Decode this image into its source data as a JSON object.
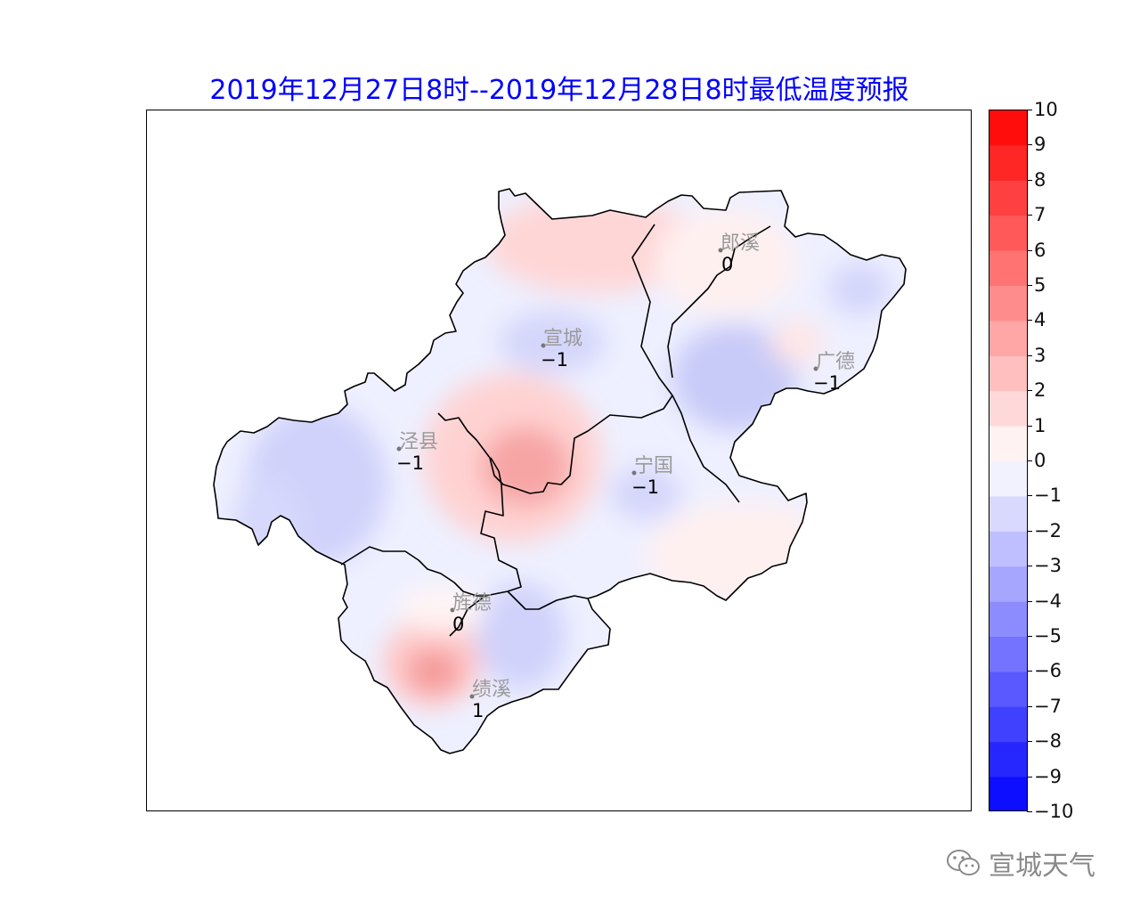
{
  "title": "2019年12月27日8时--2019年12月28日8时最低温度预报",
  "colorbar": {
    "ticks": [
      "10",
      "9",
      "8",
      "7",
      "6",
      "5",
      "4",
      "3",
      "2",
      "1",
      "0",
      "−1",
      "−2",
      "−3",
      "−4",
      "−5",
      "−6",
      "−7",
      "−8",
      "−9",
      "−10"
    ],
    "min": -10,
    "max": 10,
    "positive_color": "#ff0000",
    "negative_color": "#0000ff",
    "neutral_color": "#ffffff"
  },
  "stations": [
    {
      "name": "郎溪",
      "value": "0"
    },
    {
      "name": "宣城",
      "value": "−1"
    },
    {
      "name": "广德",
      "value": "−1"
    },
    {
      "name": "泾县",
      "value": "−1"
    },
    {
      "name": "宁国",
      "value": "−1"
    },
    {
      "name": "旌德",
      "value": "0"
    },
    {
      "name": "绩溪",
      "value": "1"
    }
  ],
  "watermark": {
    "text": "宣城天气",
    "icon": "wechat-icon"
  }
}
